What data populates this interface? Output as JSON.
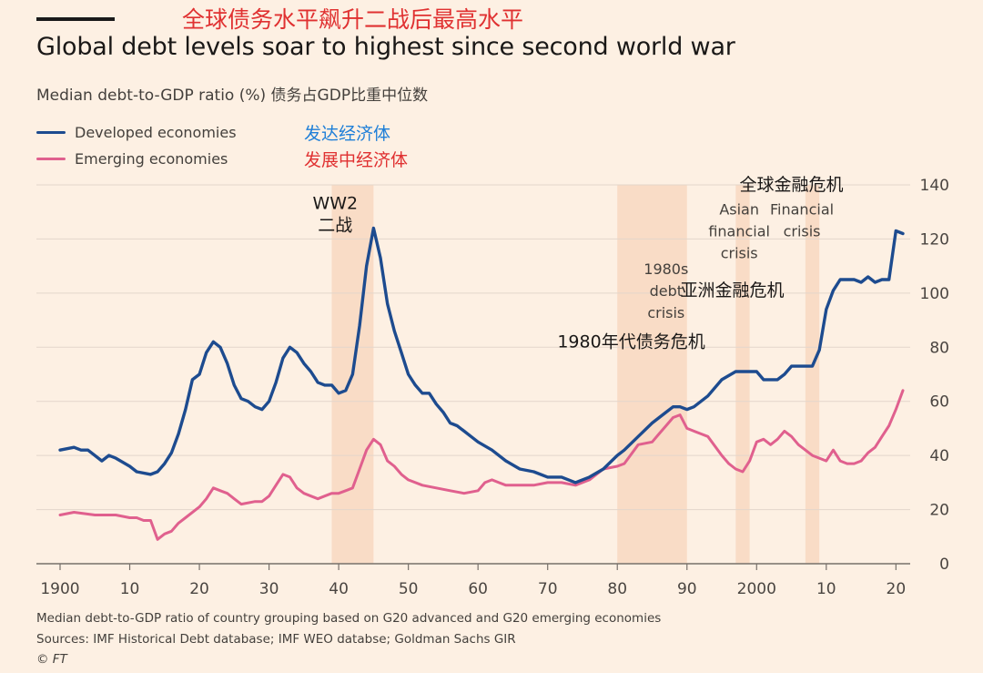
{
  "header": {
    "title_cn": "全球债务水平飙升二战后最高水平",
    "title": "Global debt levels soar to highest since second world war",
    "subtitle": "Median debt-to-GDP ratio (%) 债务占GDP比重中位数"
  },
  "legend": [
    {
      "label": "Developed economies",
      "label_cn": "发达经济体",
      "color": "#1d4b8f",
      "cn_color": "#1f7fd8"
    },
    {
      "label": "Emerging economies",
      "label_cn": "发展中经济体",
      "color": "#e0608e",
      "cn_color": "#e03131"
    }
  ],
  "footer": {
    "note": "Median debt-to-GDP ratio of country grouping based on G20 advanced and G20 emerging economies",
    "sources": "Sources: IMF Historical Debt database; IMF WEO databse; Goldman Sachs GIR",
    "credit": "© FT"
  },
  "colors": {
    "background": "#fdf0e3",
    "shade": "#f9dcc6",
    "grid": "#e3d6cb",
    "developed": "#1d4b8f",
    "emerging": "#e0608e"
  },
  "chart_data": {
    "type": "line",
    "xlim": [
      1900,
      2021
    ],
    "ylim": [
      0,
      140
    ],
    "y_ticks": [
      0,
      20,
      40,
      60,
      80,
      100,
      120,
      140
    ],
    "y_axis_side": "right",
    "grid": true,
    "x_ticks": [
      {
        "value": 1900,
        "label": "1900"
      },
      {
        "value": 1910,
        "label": "10"
      },
      {
        "value": 1920,
        "label": "20"
      },
      {
        "value": 1930,
        "label": "30"
      },
      {
        "value": 1940,
        "label": "40"
      },
      {
        "value": 1950,
        "label": "50"
      },
      {
        "value": 1960,
        "label": "60"
      },
      {
        "value": 1970,
        "label": "70"
      },
      {
        "value": 1980,
        "label": "80"
      },
      {
        "value": 1990,
        "label": "90"
      },
      {
        "value": 2000,
        "label": "2000"
      },
      {
        "value": 2010,
        "label": "10"
      },
      {
        "value": 2020,
        "label": "20"
      }
    ],
    "shaded_periods": [
      {
        "name": "WW2",
        "start": 1939,
        "end": 1945
      },
      {
        "name": "1980s debt crisis",
        "start": 1980,
        "end": 1990
      },
      {
        "name": "Asian financial crisis",
        "start": 1997,
        "end": 1999
      },
      {
        "name": "Financial crisis",
        "start": 2007,
        "end": 2009
      }
    ],
    "annotations": [
      {
        "lines": [
          "WW2",
          "二战"
        ],
        "x": 1939.5,
        "y": 131
      },
      {
        "lines": [
          "1980s",
          "debt",
          "crisis"
        ],
        "x": 1987,
        "y": 107
      },
      {
        "lines": [
          "1980年代债务危机"
        ],
        "x": 1982,
        "y": 80
      },
      {
        "lines": [
          "Asian",
          "financial",
          "crisis"
        ],
        "x": 1997.5,
        "y": 129
      },
      {
        "lines": [
          "亚洲金融危机"
        ],
        "x": 1996.5,
        "y": 99
      },
      {
        "lines": [
          "全球金融危机"
        ],
        "x": 2005,
        "y": 138
      },
      {
        "lines": [
          "Financial",
          "crisis"
        ],
        "x": 2006.5,
        "y": 129
      }
    ],
    "series": [
      {
        "name": "Developed economies",
        "x": [
          1900,
          1902,
          1903,
          1904,
          1906,
          1907,
          1908,
          1910,
          1911,
          1913,
          1914,
          1915,
          1916,
          1917,
          1918,
          1919,
          1920,
          1921,
          1922,
          1923,
          1924,
          1925,
          1926,
          1927,
          1928,
          1929,
          1930,
          1931,
          1932,
          1933,
          1934,
          1935,
          1936,
          1937,
          1938,
          1939,
          1940,
          1941,
          1942,
          1943,
          1944,
          1945,
          1946,
          1947,
          1948,
          1949,
          1950,
          1951,
          1952,
          1953,
          1954,
          1955,
          1956,
          1957,
          1958,
          1959,
          1960,
          1962,
          1964,
          1966,
          1968,
          1970,
          1972,
          1974,
          1976,
          1978,
          1980,
          1981,
          1983,
          1985,
          1987,
          1988,
          1989,
          1990,
          1991,
          1993,
          1995,
          1997,
          1998,
          1999,
          2000,
          2001,
          2002,
          2003,
          2004,
          2005,
          2006,
          2007,
          2008,
          2009,
          2010,
          2011,
          2012,
          2013,
          2014,
          2015,
          2016,
          2017,
          2018,
          2019,
          2020,
          2021
        ],
        "values": [
          42,
          43,
          42,
          42,
          38,
          40,
          39,
          36,
          34,
          33,
          34,
          37,
          41,
          48,
          57,
          68,
          70,
          78,
          82,
          80,
          74,
          66,
          61,
          60,
          58,
          57,
          60,
          67,
          76,
          80,
          78,
          74,
          71,
          67,
          66,
          66,
          63,
          64,
          70,
          88,
          110,
          124,
          113,
          96,
          86,
          78,
          70,
          66,
          63,
          63,
          59,
          56,
          52,
          51,
          49,
          47,
          45,
          42,
          38,
          35,
          34,
          32,
          32,
          30,
          32,
          35,
          40,
          42,
          47,
          52,
          56,
          58,
          58,
          57,
          58,
          62,
          68,
          71,
          71,
          71,
          71,
          68,
          68,
          68,
          70,
          73,
          73,
          73,
          73,
          79,
          94,
          101,
          105,
          105,
          105,
          104,
          106,
          104,
          105,
          105,
          123,
          122
        ]
      },
      {
        "name": "Emerging economies",
        "x": [
          1900,
          1902,
          1905,
          1908,
          1910,
          1911,
          1912,
          1913,
          1914,
          1915,
          1916,
          1917,
          1918,
          1920,
          1921,
          1922,
          1923,
          1924,
          1925,
          1926,
          1928,
          1929,
          1930,
          1931,
          1932,
          1933,
          1934,
          1935,
          1936,
          1937,
          1938,
          1939,
          1940,
          1941,
          1942,
          1943,
          1944,
          1945,
          1946,
          1947,
          1948,
          1949,
          1950,
          1952,
          1954,
          1956,
          1958,
          1960,
          1961,
          1962,
          1963,
          1964,
          1966,
          1968,
          1970,
          1972,
          1974,
          1976,
          1978,
          1980,
          1981,
          1983,
          1985,
          1986,
          1987,
          1988,
          1989,
          1990,
          1991,
          1992,
          1993,
          1995,
          1996,
          1997,
          1998,
          1999,
          2000,
          2001,
          2002,
          2003,
          2004,
          2005,
          2006,
          2007,
          2008,
          2009,
          2010,
          2011,
          2012,
          2013,
          2014,
          2015,
          2016,
          2017,
          2018,
          2019,
          2020,
          2021
        ],
        "values": [
          18,
          19,
          18,
          18,
          17,
          17,
          16,
          16,
          9,
          11,
          12,
          15,
          17,
          21,
          24,
          28,
          27,
          26,
          24,
          22,
          23,
          23,
          25,
          29,
          33,
          32,
          28,
          26,
          25,
          24,
          25,
          26,
          26,
          27,
          28,
          35,
          42,
          46,
          44,
          38,
          36,
          33,
          31,
          29,
          28,
          27,
          26,
          27,
          30,
          31,
          30,
          29,
          29,
          29,
          30,
          30,
          29,
          31,
          35,
          36,
          37,
          44,
          45,
          48,
          51,
          54,
          55,
          50,
          49,
          48,
          47,
          40,
          37,
          35,
          34,
          38,
          45,
          46,
          44,
          46,
          49,
          47,
          44,
          42,
          40,
          39,
          38,
          42,
          38,
          37,
          37,
          38,
          41,
          43,
          47,
          51,
          57,
          64
        ]
      }
    ]
  }
}
